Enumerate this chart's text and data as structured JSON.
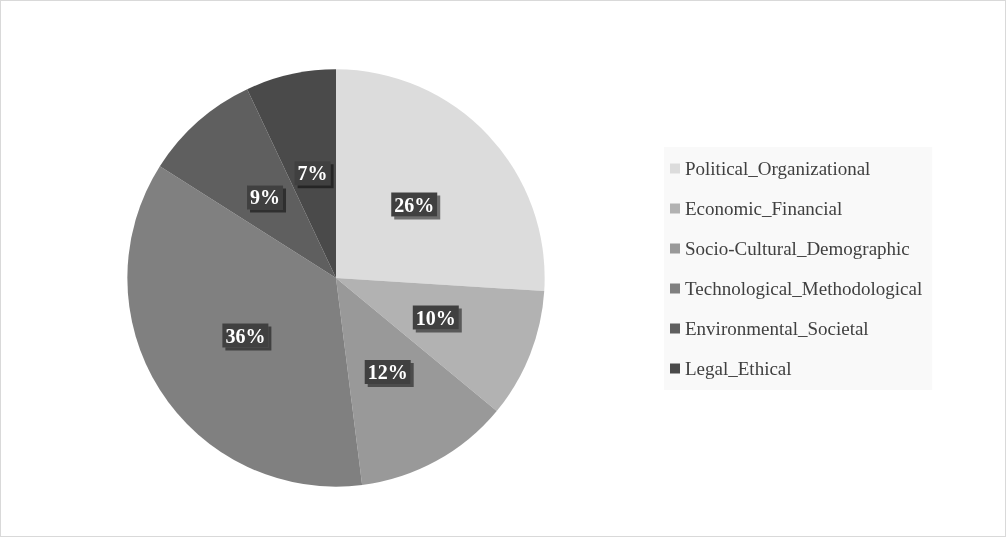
{
  "chart_data": {
    "type": "pie",
    "categories": [
      "Political_Organizational",
      "Economic_Financial",
      "Socio-Cultural_Demographic",
      "Technological_Methodological",
      "Environmental_Societal",
      "Legal_Ethical"
    ],
    "values": [
      26,
      10,
      12,
      36,
      9,
      7
    ],
    "value_labels": [
      "26%",
      "10%",
      "12%",
      "36%",
      "9%",
      "7%"
    ],
    "colors": [
      "#dcdcdc",
      "#b2b2b2",
      "#999999",
      "#808080",
      "#5f5f5f",
      "#4a4a4a"
    ],
    "legend": "right"
  }
}
